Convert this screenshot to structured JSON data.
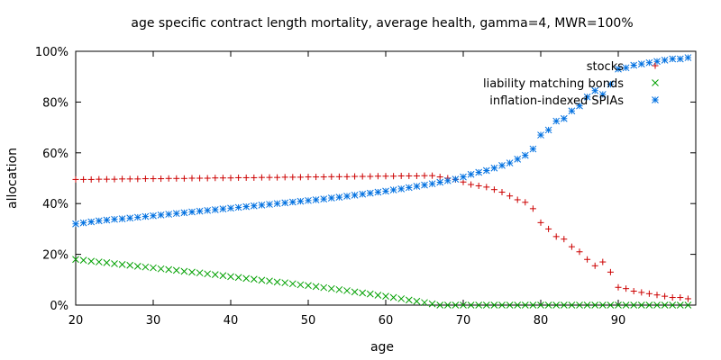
{
  "chart_data": {
    "type": "scatter",
    "title": "age specific contract length mortality, average health, gamma=4, MWR=100%",
    "xlabel": "age",
    "ylabel": "allocation",
    "xlim": [
      20,
      100
    ],
    "ylim": [
      0,
      100
    ],
    "x_ticks": [
      20,
      30,
      40,
      50,
      60,
      70,
      80,
      90
    ],
    "y_ticks": [
      0,
      20,
      40,
      60,
      80,
      100
    ],
    "y_tick_labels": [
      "0%",
      "20%",
      "40%",
      "60%",
      "80%",
      "100%"
    ],
    "grid": false,
    "legend_position": "top-right",
    "x": [
      20,
      21,
      22,
      23,
      24,
      25,
      26,
      27,
      28,
      29,
      30,
      31,
      32,
      33,
      34,
      35,
      36,
      37,
      38,
      39,
      40,
      41,
      42,
      43,
      44,
      45,
      46,
      47,
      48,
      49,
      50,
      51,
      52,
      53,
      54,
      55,
      56,
      57,
      58,
      59,
      60,
      61,
      62,
      63,
      64,
      65,
      66,
      67,
      68,
      69,
      70,
      71,
      72,
      73,
      74,
      75,
      76,
      77,
      78,
      79,
      80,
      81,
      82,
      83,
      84,
      85,
      86,
      87,
      88,
      89,
      90,
      91,
      92,
      93,
      94,
      95,
      96,
      97,
      98,
      99
    ],
    "series": [
      {
        "name": "stocks",
        "marker": "+",
        "color": "#cc0000",
        "values": [
          49.5,
          49.5,
          49.5,
          49.6,
          49.6,
          49.6,
          49.7,
          49.7,
          49.7,
          49.8,
          49.8,
          49.8,
          49.9,
          49.9,
          49.9,
          50.0,
          50.0,
          50.0,
          50.1,
          50.1,
          50.1,
          50.2,
          50.2,
          50.2,
          50.3,
          50.3,
          50.3,
          50.4,
          50.4,
          50.4,
          50.5,
          50.5,
          50.5,
          50.6,
          50.6,
          50.6,
          50.7,
          50.7,
          50.7,
          50.8,
          50.8,
          50.8,
          50.9,
          50.9,
          50.9,
          51.0,
          51.0,
          50.5,
          50.0,
          49.5,
          48.5,
          47.5,
          47.0,
          46.5,
          45.5,
          44.5,
          43.0,
          41.5,
          40.5,
          38.0,
          32.5,
          30.0,
          27.0,
          26.0,
          23.0,
          21.0,
          18.0,
          15.5,
          17.0,
          13.0,
          7.0,
          6.5,
          5.5,
          5.0,
          4.5,
          4.0,
          3.5,
          3.0,
          3.0,
          2.5
        ]
      },
      {
        "name": "liability matching bonds",
        "marker": "x",
        "color": "#00a000",
        "values": [
          18.0,
          17.7,
          17.3,
          17.0,
          16.7,
          16.3,
          16.0,
          15.7,
          15.3,
          15.0,
          14.7,
          14.3,
          14.0,
          13.7,
          13.3,
          13.0,
          12.7,
          12.3,
          12.0,
          11.6,
          11.2,
          10.9,
          10.5,
          10.2,
          9.8,
          9.5,
          9.1,
          8.8,
          8.4,
          8.0,
          7.7,
          7.3,
          6.9,
          6.5,
          6.1,
          5.7,
          5.2,
          4.8,
          4.4,
          3.9,
          3.5,
          3.0,
          2.5,
          2.0,
          1.5,
          1.0,
          0.5,
          0.0,
          0.0,
          0.0,
          0.0,
          0.0,
          0.0,
          0.0,
          0.0,
          0.0,
          0.0,
          0.0,
          0.0,
          0.0,
          0.0,
          0.0,
          0.0,
          0.0,
          0.0,
          0.0,
          0.0,
          0.0,
          0.0,
          0.0,
          0.0,
          0.0,
          0.0,
          0.0,
          0.0,
          0.0,
          0.0,
          0.0,
          0.0,
          0.0
        ]
      },
      {
        "name": "inflation-indexed SPIAs",
        "marker": "*",
        "color": "#0070e0",
        "values": [
          32.0,
          32.4,
          32.8,
          33.2,
          33.5,
          33.8,
          34.0,
          34.3,
          34.6,
          34.9,
          35.2,
          35.5,
          35.8,
          36.1,
          36.4,
          36.7,
          37.0,
          37.3,
          37.6,
          37.9,
          38.2,
          38.5,
          38.8,
          39.1,
          39.4,
          39.7,
          40.0,
          40.3,
          40.6,
          40.9,
          41.2,
          41.5,
          41.8,
          42.2,
          42.5,
          42.9,
          43.3,
          43.7,
          44.1,
          44.5,
          44.9,
          45.4,
          45.8,
          46.3,
          46.8,
          47.3,
          47.8,
          48.4,
          49.0,
          49.6,
          50.5,
          51.5,
          52.3,
          53.0,
          54.0,
          55.0,
          56.0,
          57.5,
          59.0,
          61.5,
          67.0,
          69.0,
          72.5,
          73.5,
          76.5,
          78.5,
          82.0,
          84.5,
          83.0,
          87.0,
          93.0,
          93.5,
          94.5,
          95.0,
          95.5,
          96.0,
          96.5,
          97.0,
          97.0,
          97.5
        ]
      }
    ]
  }
}
